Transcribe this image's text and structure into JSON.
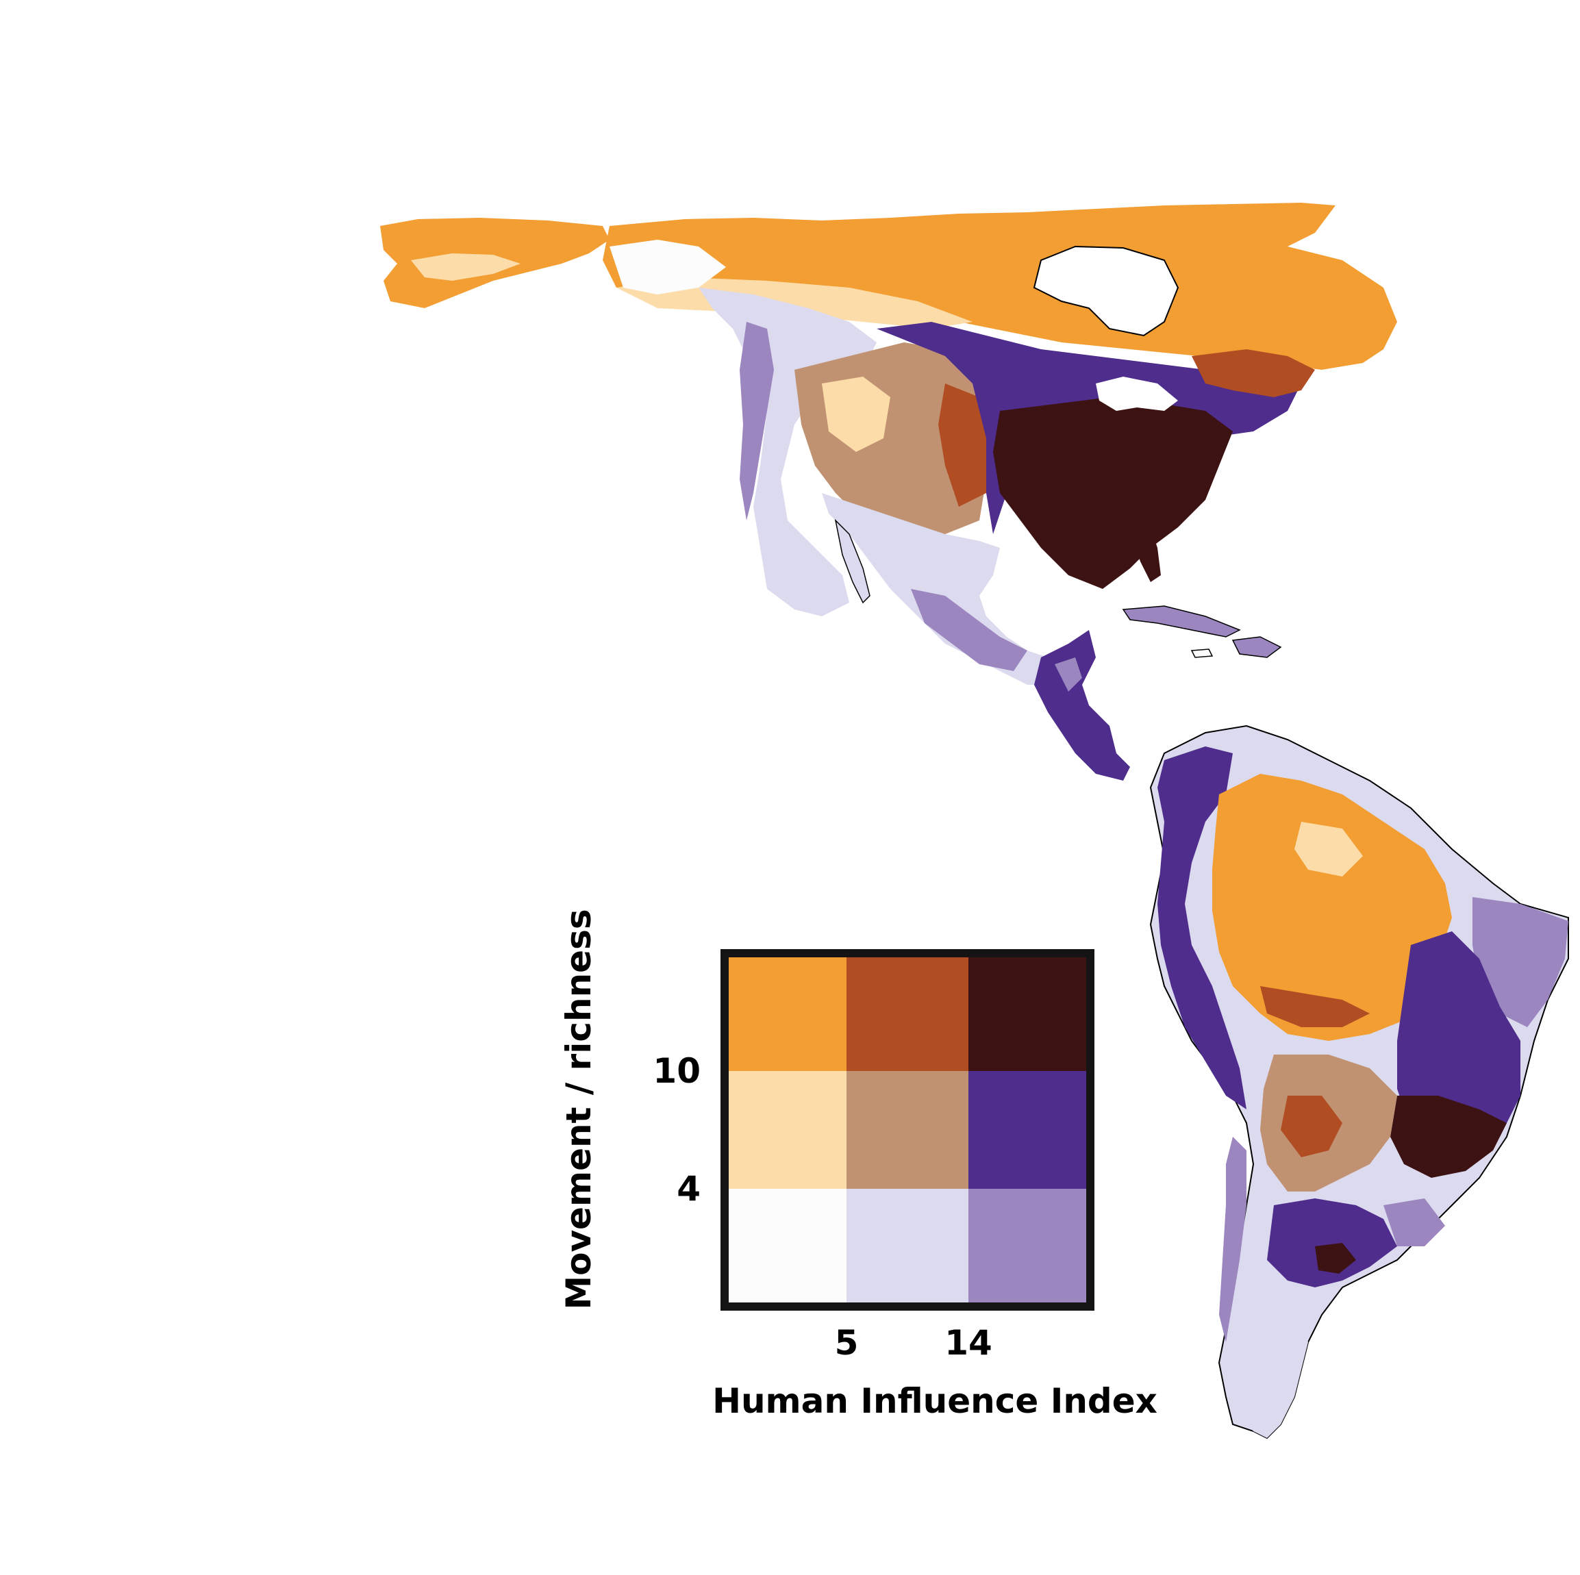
{
  "colors": {
    "background": "#ffffff",
    "outline": "#000000",
    "legend_frame": "#141414"
  },
  "legend": {
    "x_label": "Human Influence Index",
    "y_label": "Movement / richness",
    "x_ticks": [
      "5",
      "14"
    ],
    "y_ticks": [
      "10",
      "4"
    ],
    "grid": [
      [
        "#f29e32",
        "#b04d22",
        "#3d1213"
      ],
      [
        "#fcdca8",
        "#c19272",
        "#4e2d8c"
      ],
      [
        "#fcfcfc",
        "#dcdaee",
        "#9b86bf"
      ]
    ]
  },
  "map": {
    "regions": [
      {
        "name": "alaska-yukon",
        "color": "#f29e32"
      },
      {
        "name": "canadian-arctic",
        "color": "#f29e32"
      },
      {
        "name": "hudson-bay-water",
        "color": "#ffffff"
      },
      {
        "name": "western-cordillera",
        "color": "#dcdaee"
      },
      {
        "name": "great-plains",
        "color": "#c19272"
      },
      {
        "name": "prairie-purple-band",
        "color": "#4e2d8c"
      },
      {
        "name": "eastern-us",
        "color": "#3d1213"
      },
      {
        "name": "mexico",
        "color": "#dcdaee"
      },
      {
        "name": "central-america",
        "color": "#4e2d8c"
      },
      {
        "name": "caribbean",
        "color": "#9b86bf"
      },
      {
        "name": "amazon",
        "color": "#f29e32"
      },
      {
        "name": "andes-west",
        "color": "#4e2d8c"
      },
      {
        "name": "northeast-brazil",
        "color": "#9b86bf"
      },
      {
        "name": "southeast-brazil",
        "color": "#3d1213"
      },
      {
        "name": "gran-chaco",
        "color": "#c19272"
      },
      {
        "name": "pampas",
        "color": "#4e2d8c"
      },
      {
        "name": "patagonia",
        "color": "#dcdaee"
      }
    ]
  }
}
